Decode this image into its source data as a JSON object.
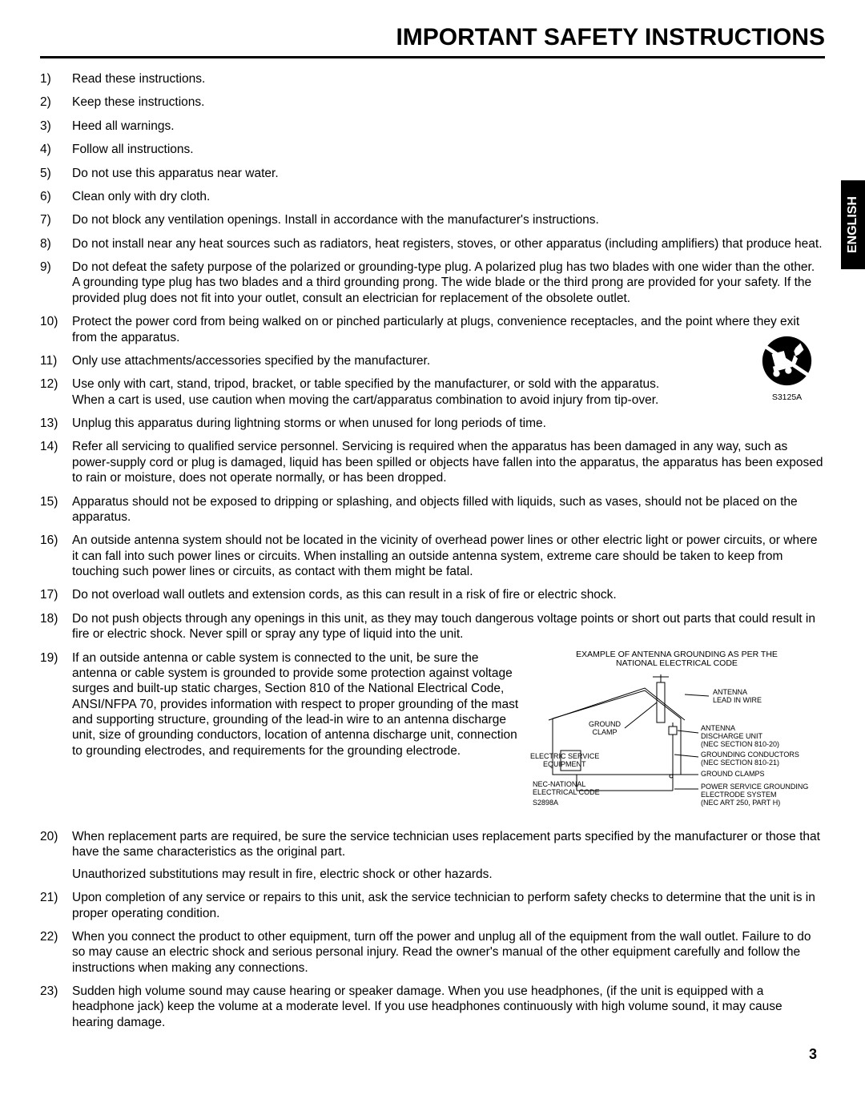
{
  "title": "IMPORTANT SAFETY INSTRUCTIONS",
  "lang_tab": "ENGLISH",
  "page_number": "3",
  "cart_icon_label": "S3125A",
  "antenna_figure": {
    "title_line1": "EXAMPLE OF ANTENNA GROUNDING AS PER THE",
    "title_line2": "NATIONAL ELECTRICAL CODE",
    "label_ground_clamp": "GROUND CLAMP",
    "label_antenna_lead": "ANTENNA LEAD IN WIRE",
    "label_discharge_unit": "ANTENNA DISCHARGE UNIT (NEC SECTION 810-20)",
    "label_grounding_conductors": "GROUNDING CONDUCTORS (NEC SECTION 810-21)",
    "label_ground_clamps": "GROUND CLAMPS",
    "label_power_service": "POWER SERVICE GROUNDING ELECTRODE SYSTEM (NEC ART 250, PART H)",
    "label_electric_service": "ELECTRIC SERVICE EQUIPMENT",
    "label_nec_national": "NEC-NATIONAL ELECTRICAL CODE",
    "label_code": "S2898A"
  },
  "items": [
    {
      "n": "1)",
      "t": "Read these instructions."
    },
    {
      "n": "2)",
      "t": "Keep these instructions."
    },
    {
      "n": "3)",
      "t": "Heed all warnings."
    },
    {
      "n": "4)",
      "t": "Follow all instructions."
    },
    {
      "n": "5)",
      "t": "Do not use this apparatus near water."
    },
    {
      "n": "6)",
      "t": "Clean only with dry cloth."
    },
    {
      "n": "7)",
      "t": "Do not block any ventilation openings. Install in accordance with the manufacturer's instructions."
    },
    {
      "n": "8)",
      "t": "Do not install near any heat sources such as radiators, heat registers, stoves, or other apparatus (including amplifiers) that produce heat."
    },
    {
      "n": "9)",
      "t": "Do not defeat the safety purpose of the polarized or grounding-type plug. A polarized plug has two blades with one wider than the other. A grounding type plug has two blades and a third grounding prong. The wide blade or the third prong are provided for your safety. If the provided plug does not fit into your outlet, consult an electrician for replacement of the obsolete outlet."
    },
    {
      "n": "10)",
      "t": "Protect the power cord from being walked on or pinched particularly at plugs, convenience receptacles, and the point where they exit from the apparatus."
    },
    {
      "n": "11)",
      "t": "Only use attachments/accessories specified by the manufacturer."
    },
    {
      "n": "12)",
      "t": "Use only with cart, stand, tripod, bracket, or table specified by the manufacturer, or sold with the apparatus. When a cart is used, use caution when moving the cart/apparatus combination to avoid injury from tip-over.",
      "cart": true
    },
    {
      "n": "13)",
      "t": "Unplug this apparatus during lightning storms or when unused for long periods of time."
    },
    {
      "n": "14)",
      "t": "Refer all servicing to qualified service personnel. Servicing is required when the apparatus has been damaged in any way, such as power-supply cord or plug is damaged, liquid has been spilled or objects have fallen into the apparatus, the apparatus has been exposed to rain or moisture, does not operate normally, or has been dropped."
    },
    {
      "n": "15)",
      "t": "Apparatus should not be exposed to dripping or splashing, and objects filled with liquids, such as vases, should not be placed on the apparatus."
    },
    {
      "n": "16)",
      "t": "An outside antenna system should not be located in the vicinity of overhead power lines or other electric light or power circuits, or where it can fall into such power lines or circuits. When installing an outside antenna system, extreme care should be taken to keep from touching such power lines or circuits, as contact with them might be fatal."
    },
    {
      "n": "17)",
      "t": "Do not overload wall outlets and extension cords, as this can result in a risk of fire or electric shock."
    },
    {
      "n": "18)",
      "t": "Do not push objects through any openings in this unit, as they may touch dangerous voltage points or short out parts that could result in fire or electric shock. Never spill or spray any type of liquid into the unit."
    },
    {
      "n": "19)",
      "t": "If an outside antenna or cable system is connected to the unit, be sure the antenna or cable system is grounded to provide some protection against voltage surges and built-up static charges, Section 810 of the National Electrical Code, ANSI/NFPA 70, provides information with respect to proper grounding of the mast and supporting structure, grounding of the lead-in wire to an antenna discharge unit, size of grounding conductors, location of antenna discharge unit, connection to grounding electrodes, and requirements for the grounding electrode.",
      "antenna": true
    },
    {
      "n": "20)",
      "t": "When replacement parts are required, be sure the service technician uses replacement parts specified by the manufacturer or those that have the same characteristics as the original part.",
      "extra": "Unauthorized substitutions may result in fire, electric shock or other hazards."
    },
    {
      "n": "21)",
      "t": "Upon completion of any service or repairs to this unit, ask the service technician to perform safety checks to determine that the unit is in proper operating condition."
    },
    {
      "n": "22)",
      "t": "When you connect the product to other equipment, turn off the power and unplug all of the equipment from the wall outlet. Failure to do so may cause an electric shock and serious personal injury. Read the owner's manual of the other equipment carefully and follow the instructions when making any connections."
    },
    {
      "n": "23)",
      "t": "Sudden high volume sound may cause hearing or speaker damage. When you use headphones, (if the unit is equipped with a headphone jack) keep the volume at a moderate level. If you use headphones continuously with high volume sound, it may cause hearing damage."
    }
  ]
}
